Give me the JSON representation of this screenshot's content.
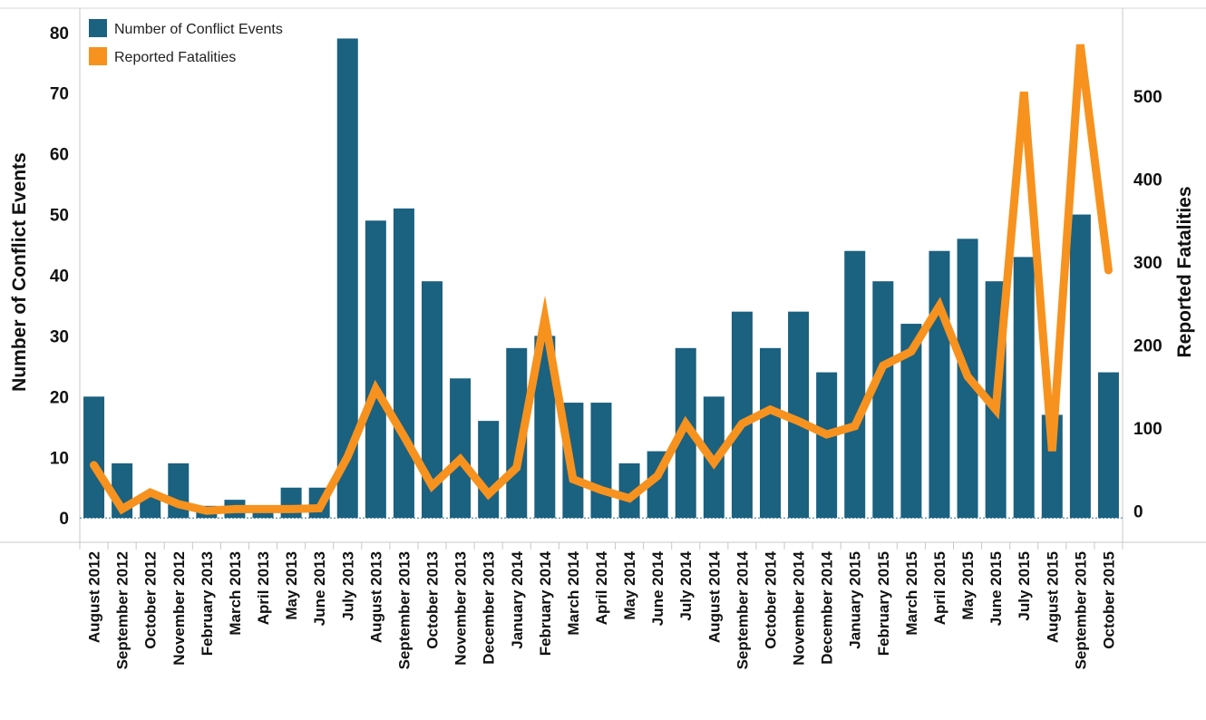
{
  "chart_data": {
    "type": "bar",
    "categories": [
      "August 2012",
      "September 2012",
      "October 2012",
      "November 2012",
      "February 2013",
      "March 2013",
      "April 2013",
      "May 2013",
      "June 2013",
      "July 2013",
      "August 2013",
      "September 2013",
      "October 2013",
      "November 2013",
      "December 2013",
      "January 2014",
      "February 2014",
      "March 2014",
      "April 2014",
      "May 2014",
      "June 2014",
      "July 2014",
      "August 2014",
      "September 2014",
      "October 2014",
      "November 2014",
      "December 2014",
      "January 2015",
      "February 2015",
      "March 2015",
      "April 2015",
      "May 2015",
      "June 2015",
      "July 2015",
      "August 2015",
      "September 2015",
      "October 2015"
    ],
    "series": [
      {
        "name": "Number of Conflict Events",
        "type": "bar",
        "axis": "left",
        "color": "#1b6180",
        "values": [
          20,
          9,
          4,
          9,
          2,
          3,
          2,
          5,
          5,
          79,
          49,
          51,
          39,
          23,
          16,
          28,
          30,
          19,
          19,
          9,
          11,
          28,
          20,
          34,
          28,
          34,
          24,
          44,
          39,
          32,
          44,
          46,
          39,
          43,
          17,
          50,
          24
        ]
      },
      {
        "name": "Reported Fatalities",
        "type": "line",
        "axis": "right",
        "color": "#f7921e",
        "values": [
          55,
          2,
          22,
          8,
          0,
          2,
          2,
          2,
          3,
          65,
          147,
          90,
          30,
          62,
          20,
          52,
          232,
          38,
          25,
          15,
          42,
          105,
          58,
          105,
          122,
          108,
          92,
          102,
          175,
          192,
          247,
          162,
          122,
          505,
          72,
          562,
          290
        ]
      }
    ],
    "xlabel": "",
    "ylabel_left": "Number of Conflict Events",
    "ylabel_right": "Reported Fatalities",
    "ylim_left": [
      -4,
      84
    ],
    "ylim_right": [
      -38,
      606
    ],
    "yticks_left": [
      0,
      10,
      20,
      30,
      40,
      50,
      60,
      70,
      80
    ],
    "yticks_right": [
      0,
      100,
      200,
      300,
      400,
      500
    ],
    "grid": false,
    "zero_line": true,
    "legend_position": "top-left"
  }
}
